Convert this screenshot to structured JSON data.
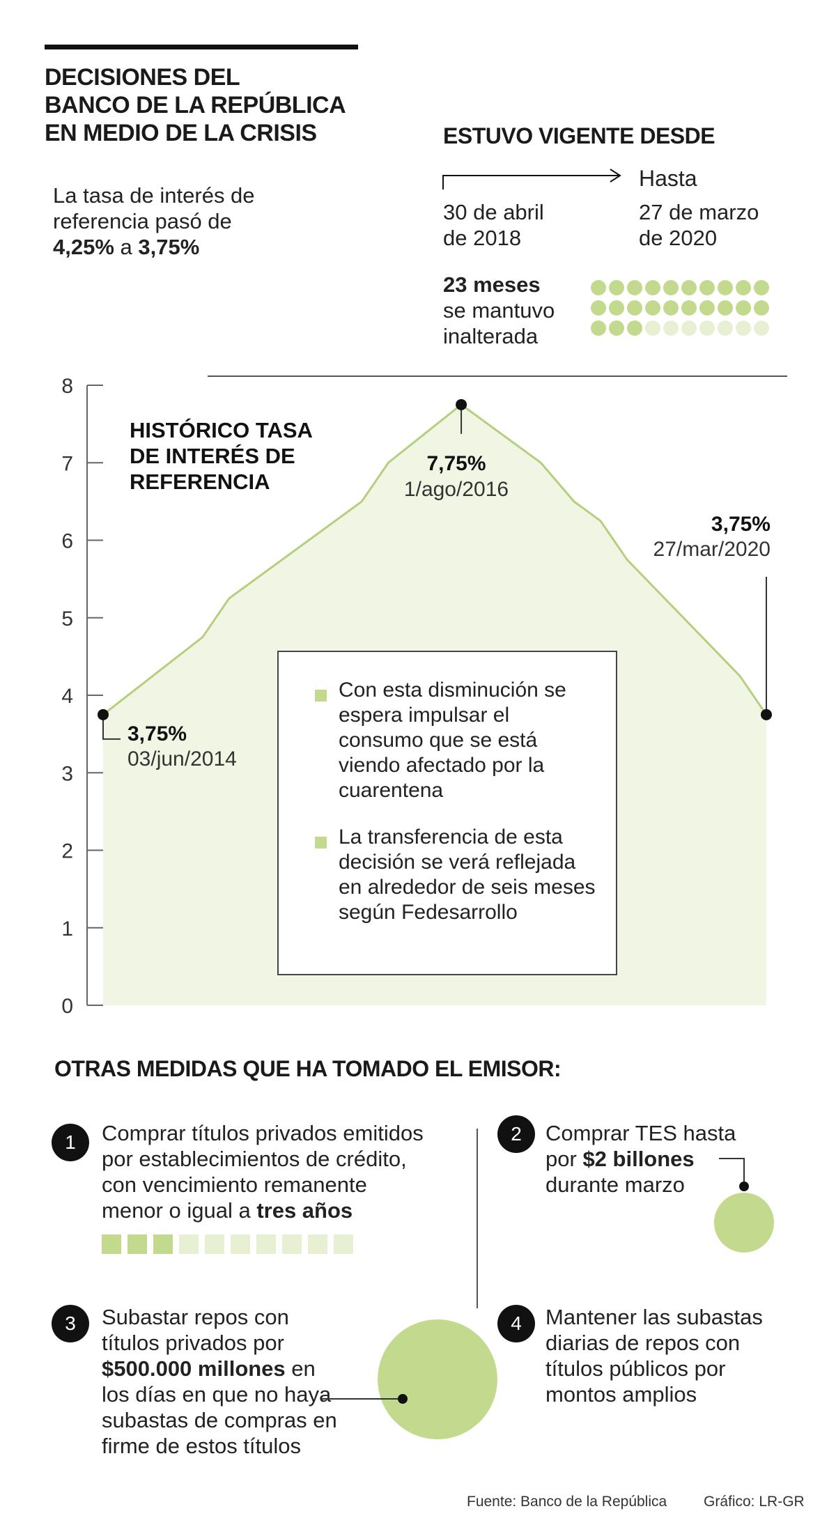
{
  "header": {
    "title_lines": [
      "DECISIONES DEL",
      "BANCO DE LA REPÚBLICA",
      "EN MEDIO DE LA CRISIS"
    ],
    "rate_text_line1": "La tasa de interés de",
    "rate_text_line2": "referencia pasó de",
    "rate_from": "4,25%",
    "rate_conj": "a",
    "rate_to": "3,75%"
  },
  "vigente": {
    "title": "ESTUVO VIGENTE DESDE",
    "hasta_label": "Hasta",
    "from_line1": "30 de abril",
    "from_line2": "de 2018",
    "to_line1": "27 de marzo",
    "to_line2": "de 2020",
    "months_bold": "23 meses",
    "months_line2": "se mantuvo",
    "months_line3": "inalterada",
    "dots_total": 30,
    "dots_filled": 23
  },
  "colors": {
    "green": "#c3d98e",
    "green_line": "#b5cf7e",
    "green_light": "#e8f0d3",
    "area_fill": "#f1f6e4",
    "dark": "#111111",
    "axis": "#666666"
  },
  "chart_data": {
    "type": "area",
    "title_lines": [
      "HISTÓRICO TASA",
      "DE INTERÉS DE",
      "REFERENCIA"
    ],
    "ylim": [
      0,
      8
    ],
    "yticks": [
      "0",
      "1",
      "2",
      "3",
      "4",
      "5",
      "6",
      "7",
      "8"
    ],
    "x": [
      0,
      0.15,
      0.19,
      0.39,
      0.43,
      0.54,
      0.66,
      0.71,
      0.75,
      0.79,
      0.96,
      1
    ],
    "values": [
      3.75,
      4.75,
      5.25,
      6.5,
      7.0,
      7.75,
      7.0,
      6.5,
      6.25,
      5.75,
      4.25,
      3.75
    ],
    "annotations": [
      {
        "value": "3,75%",
        "date": "03/jun/2014"
      },
      {
        "value": "7,75%",
        "date": "1/ago/2016"
      },
      {
        "value": "3,75%",
        "date": "27/mar/2020"
      }
    ]
  },
  "infobox": {
    "bullet1_lines": [
      "Con esta disminución se",
      "espera impulsar el",
      "consumo que se está",
      "viendo afectado por la",
      "cuarentena"
    ],
    "bullet2_lines": [
      "La transferencia de esta",
      "decisión se verá reflejada",
      "en alrededor de seis meses",
      "según Fedesarrollo"
    ]
  },
  "medidas": {
    "title": "OTRAS MEDIDAS QUE HA TOMADO EL EMISOR:",
    "m1": {
      "num": "1",
      "line1": "Comprar títulos privados emitidos",
      "line2": "por establecimientos de crédito,",
      "line3": "con vencimiento remanente",
      "line4_prefix": "menor o igual a",
      "line4_bold": "tres años",
      "squares_total": 10,
      "squares_filled": 3
    },
    "m2": {
      "num": "2",
      "line1": "Comprar TES hasta",
      "line2_prefix": "por",
      "line2_bold": "$2 billones",
      "line3": "durante marzo"
    },
    "m3": {
      "num": "3",
      "line1": "Subastar repos con",
      "line2": "títulos privados por",
      "line3_bold": "$500.000 millones",
      "line3_suffix": "en",
      "line4": "los días en que no haya",
      "line5": "subastas de compras en",
      "line6": "firme de estos títulos"
    },
    "m4": {
      "num": "4",
      "line1": "Mantener las subastas",
      "line2": "diarias de repos con",
      "line3": "títulos públicos por",
      "line4": "montos amplios"
    }
  },
  "footer": {
    "source": "Fuente: Banco de la República",
    "credit": "Gráfico: LR-GR"
  }
}
